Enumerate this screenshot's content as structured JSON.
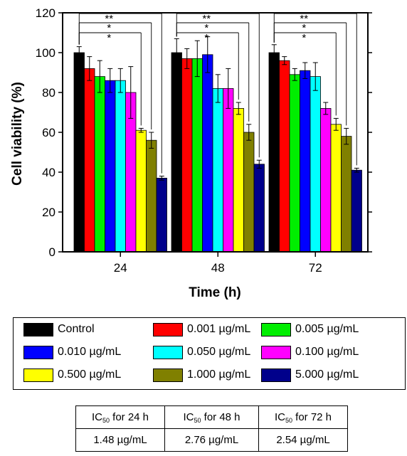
{
  "chart_data": {
    "type": "bar",
    "xlabel": "Time (h)",
    "ylabel": "Cell viability (%)",
    "ylim": [
      0,
      120
    ],
    "yticks": [
      0,
      20,
      40,
      60,
      80,
      100,
      120
    ],
    "categories": [
      "24",
      "48",
      "72"
    ],
    "series": [
      {
        "name": "Control",
        "color": "#000000",
        "values": [
          100,
          100,
          100
        ],
        "errors": [
          3,
          7,
          4
        ]
      },
      {
        "name": "0.001 µg/mL",
        "color": "#ff0000",
        "values": [
          92,
          97,
          96
        ],
        "errors": [
          6,
          5,
          2
        ]
      },
      {
        "name": "0.005 µg/mL",
        "color": "#00ee00",
        "values": [
          88,
          97,
          89
        ],
        "errors": [
          8,
          9,
          3
        ]
      },
      {
        "name": "0.010 µg/mL",
        "color": "#0000ff",
        "values": [
          86,
          99,
          91
        ],
        "errors": [
          6,
          9,
          4
        ]
      },
      {
        "name": "0.050 µg/mL",
        "color": "#00ffff",
        "values": [
          86,
          82,
          88
        ],
        "errors": [
          6,
          7,
          7
        ]
      },
      {
        "name": "0.100 µg/mL",
        "color": "#ff00ff",
        "values": [
          80,
          82,
          72
        ],
        "errors": [
          13,
          10,
          3
        ]
      },
      {
        "name": "0.500 µg/mL",
        "color": "#ffff00",
        "values": [
          61,
          72,
          64
        ],
        "errors": [
          1,
          3,
          3
        ]
      },
      {
        "name": "1.000 µg/mL",
        "color": "#808000",
        "values": [
          56,
          60,
          58
        ],
        "errors": [
          4,
          4,
          4
        ]
      },
      {
        "name": "5.000 µg/mL",
        "color": "#00008b",
        "values": [
          37,
          44,
          41
        ],
        "errors": [
          1,
          2,
          1
        ]
      }
    ],
    "significance": [
      {
        "from_series": 0,
        "to_series": 6,
        "label": "*"
      },
      {
        "from_series": 0,
        "to_series": 7,
        "label": "*"
      },
      {
        "from_series": 0,
        "to_series": 8,
        "label": "**"
      }
    ],
    "legend_placement": "bottom",
    "grid": false
  },
  "ic50_table": {
    "headers": [
      {
        "prefix": "IC",
        "sub": "50",
        "suffix": " for 24 h"
      },
      {
        "prefix": "IC",
        "sub": "50",
        "suffix": " for 48 h"
      },
      {
        "prefix": "IC",
        "sub": "50",
        "suffix": " for 72 h"
      }
    ],
    "values": [
      "1.48 µg/mL",
      "2.76 µg/mL",
      "2.54 µg/mL"
    ]
  }
}
